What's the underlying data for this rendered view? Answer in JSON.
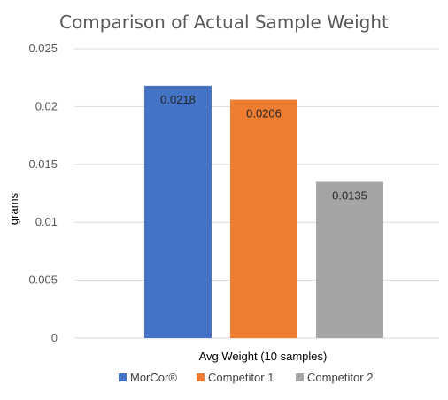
{
  "chart_data": {
    "type": "bar",
    "title": "Comparison of Actual Sample Weight",
    "xlabel": "Avg Weight (10 samples)",
    "ylabel": "grams",
    "categories": [
      "Avg Weight (10 samples)"
    ],
    "series": [
      {
        "name": "MorCor®",
        "values": [
          0.0218
        ],
        "color": "#4472C4"
      },
      {
        "name": "Competitor 1",
        "values": [
          0.0206
        ],
        "color": "#ED7D31"
      },
      {
        "name": "Competitor 2",
        "values": [
          0.0135
        ],
        "color": "#A5A5A5"
      }
    ],
    "data_labels": [
      "0.0218",
      "0.0206",
      "0.0135"
    ],
    "ylim": [
      0,
      0.025
    ],
    "yticks": [
      "0",
      "0.005",
      "0.01",
      "0.015",
      "0.02",
      "0.025"
    ],
    "grid": true,
    "legend_position": "bottom"
  }
}
